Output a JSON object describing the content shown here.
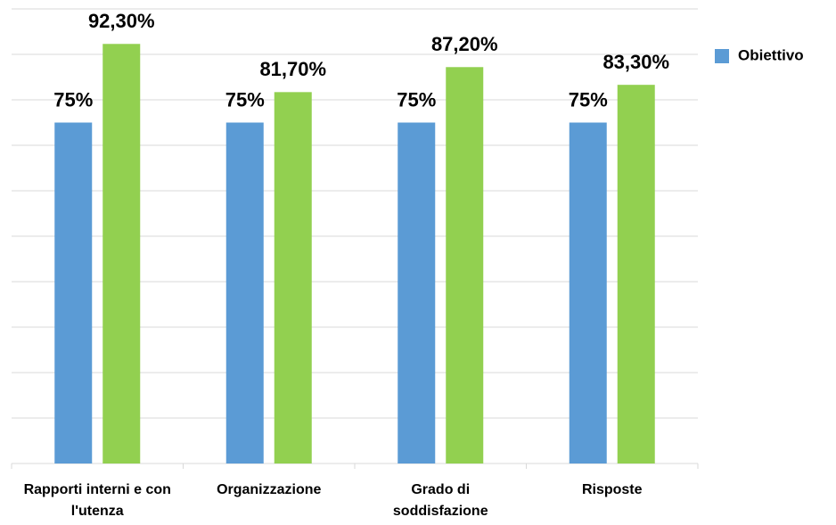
{
  "chart_data": {
    "type": "bar",
    "categories": [
      "Rapporti interni e con l'utenza",
      "Organizzazione",
      "Grado di soddisfazione",
      "Risposte"
    ],
    "series": [
      {
        "name": "Obiettivo",
        "color": "#5b9bd5",
        "values": [
          75,
          75,
          75,
          75
        ],
        "value_labels": [
          "75%",
          "75%",
          "75%",
          "75%"
        ]
      },
      {
        "color": "#92d050",
        "values": [
          92.3,
          81.7,
          87.2,
          83.3
        ],
        "value_labels": [
          "92,30%",
          "81,70%",
          "87,20%",
          "83,30%"
        ]
      }
    ],
    "ylim": [
      0,
      100
    ],
    "yticks": [
      0,
      10,
      20,
      30,
      40,
      50,
      60,
      70,
      80,
      90,
      100
    ],
    "grid": true,
    "legend": "right"
  }
}
